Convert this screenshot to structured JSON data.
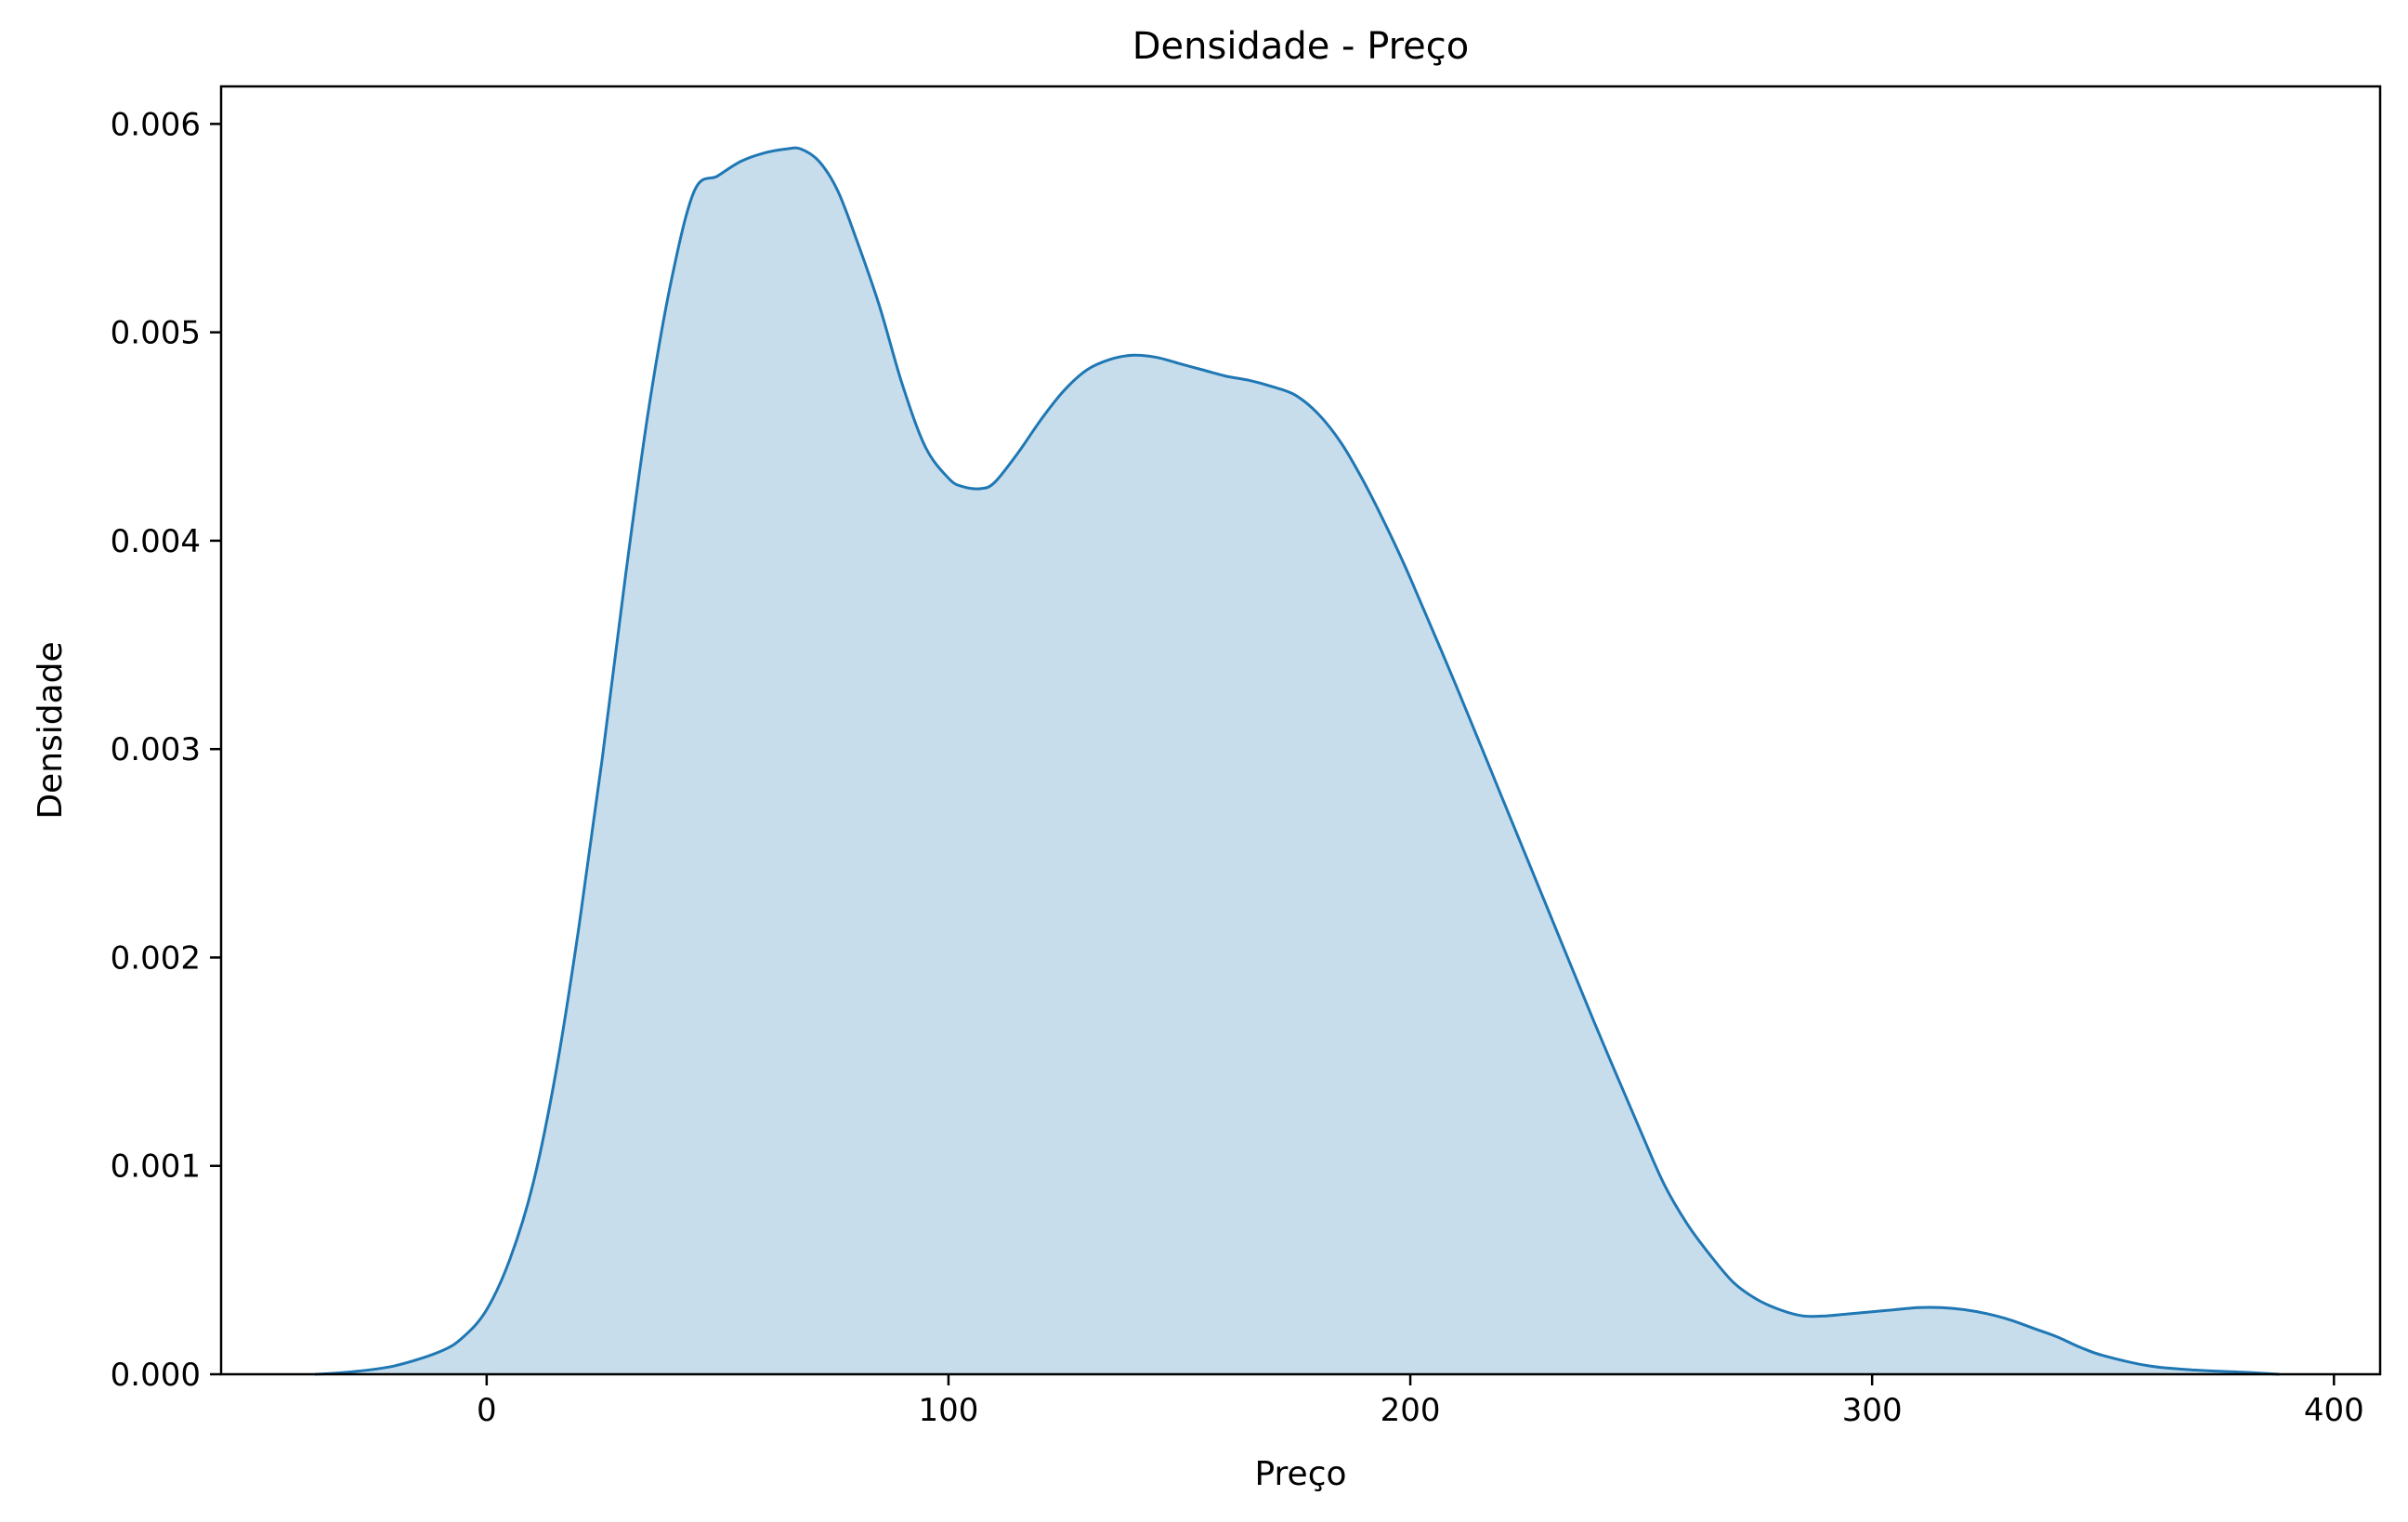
{
  "chart_data": {
    "type": "area",
    "title": "Densidade - Preço",
    "xlabel": "Preço",
    "ylabel": "Densidade",
    "xlim": [
      -57.5,
      410
    ],
    "ylim": [
      0,
      0.00618
    ],
    "x_ticks": [
      0,
      100,
      200,
      300,
      400
    ],
    "x_tick_labels": [
      "0",
      "100",
      "200",
      "300",
      "400"
    ],
    "y_ticks": [
      0,
      0.001,
      0.002,
      0.003,
      0.004,
      0.005,
      0.006
    ],
    "y_tick_labels": [
      "0.000",
      "0.001",
      "0.002",
      "0.003",
      "0.004",
      "0.005",
      "0.006"
    ],
    "grid": false,
    "line_color": "#1f77b4",
    "fill_color": "#1f77b4",
    "fill_opacity": 0.25,
    "series": [
      {
        "x": [
          -37,
          -30,
          -20,
          -10,
          -5,
          0,
          5,
          10,
          15,
          20,
          25,
          30,
          35,
          40,
          45,
          50,
          55,
          60,
          65,
          68,
          72,
          76,
          80,
          85,
          90,
          95,
          100,
          103,
          107,
          110,
          115,
          120,
          125,
          130,
          135,
          140,
          145,
          150,
          155,
          160,
          165,
          170,
          175,
          180,
          185,
          190,
          195,
          200,
          210,
          220,
          230,
          240,
          250,
          255,
          260,
          265,
          270,
          275,
          280,
          285,
          290,
          295,
          300,
          305,
          310,
          315,
          320,
          325,
          330,
          335,
          340,
          345,
          350,
          360,
          370,
          380,
          388
        ],
        "y": [
          0.0,
          1e-05,
          4e-05,
          0.00011,
          0.00018,
          0.00031,
          0.00055,
          0.00091,
          0.00145,
          0.00215,
          0.00295,
          0.00382,
          0.00462,
          0.00525,
          0.00568,
          0.00575,
          0.00582,
          0.00586,
          0.00588,
          0.00588,
          0.00582,
          0.00568,
          0.00545,
          0.00513,
          0.00475,
          0.00445,
          0.0043,
          0.00426,
          0.00425,
          0.00428,
          0.00442,
          0.00458,
          0.00472,
          0.00482,
          0.00487,
          0.00489,
          0.00488,
          0.00485,
          0.00482,
          0.00479,
          0.00477,
          0.00474,
          0.0047,
          0.00461,
          0.00447,
          0.00428,
          0.00406,
          0.00382,
          0.0033,
          0.00276,
          0.00222,
          0.00168,
          0.00116,
          0.00091,
          0.00072,
          0.00057,
          0.00044,
          0.00036,
          0.00031,
          0.00028,
          0.00028,
          0.00029,
          0.0003,
          0.00031,
          0.00032,
          0.00032,
          0.00031,
          0.00029,
          0.00026,
          0.00022,
          0.00018,
          0.00013,
          9e-05,
          4e-05,
          2e-05,
          1e-05,
          0.0
        ]
      }
    ]
  }
}
